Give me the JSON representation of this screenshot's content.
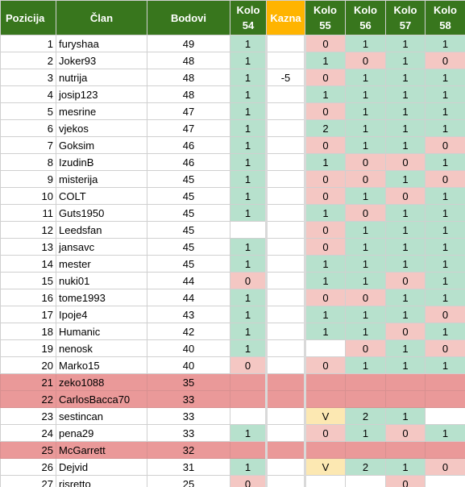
{
  "headers": {
    "position": "Pozicija",
    "member": "Član",
    "points": "Bodovi",
    "kolo54": [
      "Kolo",
      "54"
    ],
    "kazna": "Kazna",
    "kolo55": [
      "Kolo",
      "55"
    ],
    "kolo56": [
      "Kolo",
      "56"
    ],
    "kolo57": [
      "Kolo",
      "57"
    ],
    "kolo58": [
      "Kolo",
      "58"
    ]
  },
  "colors": {
    "header_green": "#38761d",
    "kazna_orange": "#ffb400",
    "cell_green": "#b7e1cd",
    "cell_red": "#f4c7c3",
    "cell_yellow": "#fce8b2",
    "eliminated_row": "#ea9999"
  },
  "rows": [
    {
      "pos": "1",
      "name": "furyshaa",
      "pts": "49",
      "elim": false,
      "k54": [
        "1",
        "g"
      ],
      "kazna": [
        "",
        ""
      ],
      "k55": [
        "0",
        "r"
      ],
      "k56": [
        "1",
        "g"
      ],
      "k57": [
        "1",
        "g"
      ],
      "k58": [
        "1",
        "g"
      ]
    },
    {
      "pos": "2",
      "name": "Joker93",
      "pts": "48",
      "elim": false,
      "k54": [
        "1",
        "g"
      ],
      "kazna": [
        "",
        ""
      ],
      "k55": [
        "1",
        "g"
      ],
      "k56": [
        "0",
        "r"
      ],
      "k57": [
        "1",
        "g"
      ],
      "k58": [
        "0",
        "r"
      ]
    },
    {
      "pos": "3",
      "name": "nutrija",
      "pts": "48",
      "elim": false,
      "k54": [
        "1",
        "g"
      ],
      "kazna": [
        "-5",
        ""
      ],
      "k55": [
        "0",
        "r"
      ],
      "k56": [
        "1",
        "g"
      ],
      "k57": [
        "1",
        "g"
      ],
      "k58": [
        "1",
        "g"
      ]
    },
    {
      "pos": "4",
      "name": "josip123",
      "pts": "48",
      "elim": false,
      "k54": [
        "1",
        "g"
      ],
      "kazna": [
        "",
        ""
      ],
      "k55": [
        "1",
        "g"
      ],
      "k56": [
        "1",
        "g"
      ],
      "k57": [
        "1",
        "g"
      ],
      "k58": [
        "1",
        "g"
      ]
    },
    {
      "pos": "5",
      "name": "mesrine",
      "pts": "47",
      "elim": false,
      "k54": [
        "1",
        "g"
      ],
      "kazna": [
        "",
        ""
      ],
      "k55": [
        "0",
        "r"
      ],
      "k56": [
        "1",
        "g"
      ],
      "k57": [
        "1",
        "g"
      ],
      "k58": [
        "1",
        "g"
      ]
    },
    {
      "pos": "6",
      "name": "vjekos",
      "pts": "47",
      "elim": false,
      "k54": [
        "1",
        "g"
      ],
      "kazna": [
        "",
        ""
      ],
      "k55": [
        "2",
        "g"
      ],
      "k56": [
        "1",
        "g"
      ],
      "k57": [
        "1",
        "g"
      ],
      "k58": [
        "1",
        "g"
      ]
    },
    {
      "pos": "7",
      "name": "Goksim",
      "pts": "46",
      "elim": false,
      "k54": [
        "1",
        "g"
      ],
      "kazna": [
        "",
        ""
      ],
      "k55": [
        "0",
        "r"
      ],
      "k56": [
        "1",
        "g"
      ],
      "k57": [
        "1",
        "g"
      ],
      "k58": [
        "0",
        "r"
      ]
    },
    {
      "pos": "8",
      "name": "IzudinB",
      "pts": "46",
      "elim": false,
      "k54": [
        "1",
        "g"
      ],
      "kazna": [
        "",
        ""
      ],
      "k55": [
        "1",
        "g"
      ],
      "k56": [
        "0",
        "r"
      ],
      "k57": [
        "0",
        "r"
      ],
      "k58": [
        "1",
        "g"
      ]
    },
    {
      "pos": "9",
      "name": "misterija",
      "pts": "45",
      "elim": false,
      "k54": [
        "1",
        "g"
      ],
      "kazna": [
        "",
        ""
      ],
      "k55": [
        "0",
        "r"
      ],
      "k56": [
        "0",
        "r"
      ],
      "k57": [
        "1",
        "g"
      ],
      "k58": [
        "0",
        "r"
      ]
    },
    {
      "pos": "10",
      "name": "COLT",
      "pts": "45",
      "elim": false,
      "k54": [
        "1",
        "g"
      ],
      "kazna": [
        "",
        ""
      ],
      "k55": [
        "0",
        "r"
      ],
      "k56": [
        "1",
        "g"
      ],
      "k57": [
        "0",
        "r"
      ],
      "k58": [
        "1",
        "g"
      ]
    },
    {
      "pos": "11",
      "name": "Guts1950",
      "pts": "45",
      "elim": false,
      "k54": [
        "1",
        "g"
      ],
      "kazna": [
        "",
        ""
      ],
      "k55": [
        "1",
        "g"
      ],
      "k56": [
        "0",
        "r"
      ],
      "k57": [
        "1",
        "g"
      ],
      "k58": [
        "1",
        "g"
      ]
    },
    {
      "pos": "12",
      "name": "Leedsfan",
      "pts": "45",
      "elim": false,
      "k54": [
        "",
        ""
      ],
      "kazna": [
        "",
        ""
      ],
      "k55": [
        "0",
        "r"
      ],
      "k56": [
        "1",
        "g"
      ],
      "k57": [
        "1",
        "g"
      ],
      "k58": [
        "1",
        "g"
      ]
    },
    {
      "pos": "13",
      "name": "jansavc",
      "pts": "45",
      "elim": false,
      "k54": [
        "1",
        "g"
      ],
      "kazna": [
        "",
        ""
      ],
      "k55": [
        "0",
        "r"
      ],
      "k56": [
        "1",
        "g"
      ],
      "k57": [
        "1",
        "g"
      ],
      "k58": [
        "1",
        "g"
      ]
    },
    {
      "pos": "14",
      "name": "mester",
      "pts": "45",
      "elim": false,
      "k54": [
        "1",
        "g"
      ],
      "kazna": [
        "",
        ""
      ],
      "k55": [
        "1",
        "g"
      ],
      "k56": [
        "1",
        "g"
      ],
      "k57": [
        "1",
        "g"
      ],
      "k58": [
        "1",
        "g"
      ]
    },
    {
      "pos": "15",
      "name": "nuki01",
      "pts": "44",
      "elim": false,
      "k54": [
        "0",
        "r"
      ],
      "kazna": [
        "",
        ""
      ],
      "k55": [
        "1",
        "g"
      ],
      "k56": [
        "1",
        "g"
      ],
      "k57": [
        "0",
        "r"
      ],
      "k58": [
        "1",
        "g"
      ]
    },
    {
      "pos": "16",
      "name": "tome1993",
      "pts": "44",
      "elim": false,
      "k54": [
        "1",
        "g"
      ],
      "kazna": [
        "",
        ""
      ],
      "k55": [
        "0",
        "r"
      ],
      "k56": [
        "0",
        "r"
      ],
      "k57": [
        "1",
        "g"
      ],
      "k58": [
        "1",
        "g"
      ]
    },
    {
      "pos": "17",
      "name": "Ipoje4",
      "pts": "43",
      "elim": false,
      "k54": [
        "1",
        "g"
      ],
      "kazna": [
        "",
        ""
      ],
      "k55": [
        "1",
        "g"
      ],
      "k56": [
        "1",
        "g"
      ],
      "k57": [
        "1",
        "g"
      ],
      "k58": [
        "0",
        "r"
      ]
    },
    {
      "pos": "18",
      "name": "Humanic",
      "pts": "42",
      "elim": false,
      "k54": [
        "1",
        "g"
      ],
      "kazna": [
        "",
        ""
      ],
      "k55": [
        "1",
        "g"
      ],
      "k56": [
        "1",
        "g"
      ],
      "k57": [
        "0",
        "r"
      ],
      "k58": [
        "1",
        "g"
      ]
    },
    {
      "pos": "19",
      "name": "nenosk",
      "pts": "40",
      "elim": false,
      "k54": [
        "1",
        "g"
      ],
      "kazna": [
        "",
        ""
      ],
      "k55": [
        "",
        ""
      ],
      "k56": [
        "0",
        "r"
      ],
      "k57": [
        "1",
        "g"
      ],
      "k58": [
        "0",
        "r"
      ]
    },
    {
      "pos": "20",
      "name": "Marko15",
      "pts": "40",
      "elim": false,
      "k54": [
        "0",
        "r"
      ],
      "kazna": [
        "",
        ""
      ],
      "k55": [
        "0",
        "r"
      ],
      "k56": [
        "1",
        "g"
      ],
      "k57": [
        "1",
        "g"
      ],
      "k58": [
        "1",
        "g"
      ]
    },
    {
      "pos": "21",
      "name": "zeko1088",
      "pts": "35",
      "elim": true,
      "k54": [
        "",
        ""
      ],
      "kazna": [
        "",
        ""
      ],
      "k55": [
        "",
        ""
      ],
      "k56": [
        "",
        ""
      ],
      "k57": [
        "",
        ""
      ],
      "k58": [
        "",
        ""
      ]
    },
    {
      "pos": "22",
      "name": "CarlosBacca70",
      "pts": "33",
      "elim": true,
      "k54": [
        "",
        ""
      ],
      "kazna": [
        "",
        ""
      ],
      "k55": [
        "",
        ""
      ],
      "k56": [
        "",
        ""
      ],
      "k57": [
        "",
        ""
      ],
      "k58": [
        "",
        ""
      ]
    },
    {
      "pos": "23",
      "name": "sestincan",
      "pts": "33",
      "elim": false,
      "k54": [
        "",
        ""
      ],
      "kazna": [
        "",
        ""
      ],
      "k55": [
        "V",
        "y"
      ],
      "k56": [
        "2",
        "g"
      ],
      "k57": [
        "1",
        "g"
      ],
      "k58": [
        "",
        ""
      ]
    },
    {
      "pos": "24",
      "name": "pena29",
      "pts": "33",
      "elim": false,
      "k54": [
        "1",
        "g"
      ],
      "kazna": [
        "",
        ""
      ],
      "k55": [
        "0",
        "r"
      ],
      "k56": [
        "1",
        "g"
      ],
      "k57": [
        "0",
        "r"
      ],
      "k58": [
        "1",
        "g"
      ]
    },
    {
      "pos": "25",
      "name": "McGarrett",
      "pts": "32",
      "elim": true,
      "k54": [
        "",
        ""
      ],
      "kazna": [
        "",
        ""
      ],
      "k55": [
        "",
        ""
      ],
      "k56": [
        "",
        ""
      ],
      "k57": [
        "",
        ""
      ],
      "k58": [
        "",
        ""
      ]
    },
    {
      "pos": "26",
      "name": "Dejvid",
      "pts": "31",
      "elim": false,
      "k54": [
        "1",
        "g"
      ],
      "kazna": [
        "",
        ""
      ],
      "k55": [
        "V",
        "y"
      ],
      "k56": [
        "2",
        "g"
      ],
      "k57": [
        "1",
        "g"
      ],
      "k58": [
        "0",
        "r"
      ]
    },
    {
      "pos": "27",
      "name": "risretto",
      "pts": "25",
      "elim": false,
      "k54": [
        "0",
        "r"
      ],
      "kazna": [
        "",
        ""
      ],
      "k55": [
        "",
        ""
      ],
      "k56": [
        "",
        ""
      ],
      "k57": [
        "0",
        "r"
      ],
      "k58": [
        "",
        ""
      ]
    }
  ]
}
